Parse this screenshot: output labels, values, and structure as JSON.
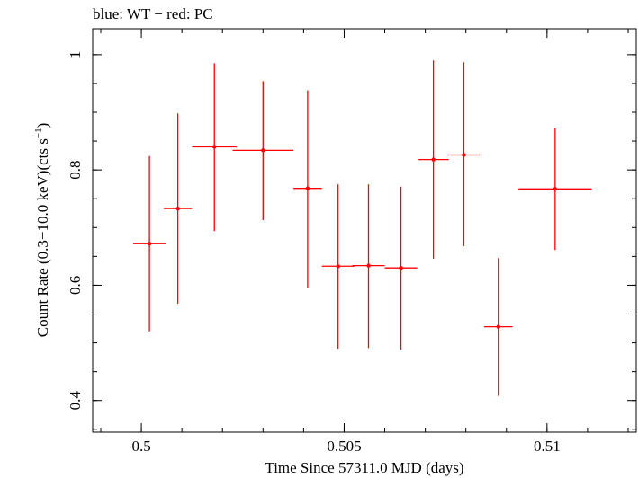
{
  "chart_data": {
    "type": "scatter",
    "title": "blue: WT − red: PC",
    "xlabel": "Time Since 57311.0 MJD (days)",
    "ylabel_main": "Count Rate (0.3−10.0 keV)(cts s",
    "ylabel_sup": "−1",
    "ylabel_end": ")",
    "xlim": [
      0.4988,
      0.5122
    ],
    "ylim": [
      0.345,
      1.045
    ],
    "x_ticks": [
      {
        "value": 0.5,
        "label": "0.5"
      },
      {
        "value": 0.505,
        "label": "0.505"
      },
      {
        "value": 0.51,
        "label": "0.51"
      }
    ],
    "x_minor_step": 0.001,
    "y_ticks": [
      {
        "value": 0.4,
        "label": "0.4"
      },
      {
        "value": 0.6,
        "label": "0.6"
      },
      {
        "value": 0.8,
        "label": "0.8"
      },
      {
        "value": 1.0,
        "label": "1"
      }
    ],
    "y_minor_step": 0.05,
    "series": [
      {
        "name": "PC",
        "color": "#ff0000",
        "points": [
          {
            "x": 0.5002,
            "xerr": 0.0004,
            "y": 0.672,
            "ylo": 0.52,
            "yhi": 0.824
          },
          {
            "x": 0.5009,
            "xerr": 0.00035,
            "y": 0.733,
            "ylo": 0.568,
            "yhi": 0.898
          },
          {
            "x": 0.5018,
            "xerr": 0.00055,
            "y": 0.84,
            "ylo": 0.694,
            "yhi": 0.985
          },
          {
            "x": 0.503,
            "xerr": 0.00075,
            "y": 0.834,
            "ylo": 0.713,
            "yhi": 0.954
          },
          {
            "x": 0.5041,
            "xerr": 0.00035,
            "y": 0.768,
            "ylo": 0.596,
            "yhi": 0.938
          },
          {
            "x": 0.50485,
            "xerr": 0.0004,
            "y": 0.633,
            "ylo": 0.49,
            "yhi": 0.775
          },
          {
            "x": 0.5056,
            "xerr": 0.0004,
            "y": 0.634,
            "ylo": 0.491,
            "yhi": 0.775
          },
          {
            "x": 0.5064,
            "xerr": 0.0004,
            "y": 0.63,
            "ylo": 0.488,
            "yhi": 0.771
          },
          {
            "x": 0.5072,
            "xerr": 0.00038,
            "y": 0.818,
            "ylo": 0.646,
            "yhi": 0.99
          },
          {
            "x": 0.50795,
            "xerr": 0.0004,
            "y": 0.826,
            "ylo": 0.668,
            "yhi": 0.987
          },
          {
            "x": 0.5088,
            "xerr": 0.00035,
            "y": 0.528,
            "ylo": 0.408,
            "yhi": 0.647
          },
          {
            "x": 0.5102,
            "xerr": 0.0009,
            "y": 0.767,
            "ylo": 0.661,
            "yhi": 0.872
          }
        ]
      }
    ]
  }
}
